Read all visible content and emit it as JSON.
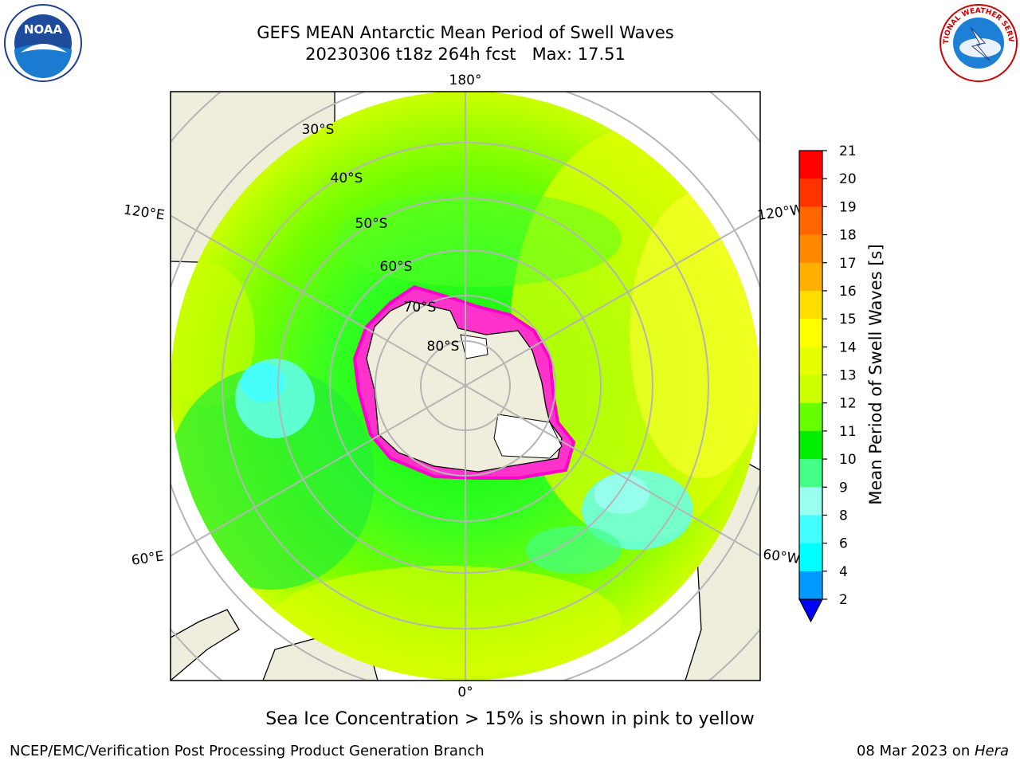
{
  "title": {
    "line1": "GEFS MEAN Antarctic Mean Period of Swell Waves",
    "line2": "20230306 t18z 264h fcst   Max: 17.51"
  },
  "logos": {
    "left_text": "NOAA",
    "right_text": "NATIONAL WEATHER SERVICE"
  },
  "map": {
    "lon_labels": [
      "180°",
      "120°E",
      "120°W",
      "60°E",
      "60°W",
      "0°"
    ],
    "lat_labels": [
      "30°S",
      "40°S",
      "50°S",
      "60°S",
      "70°S",
      "80°S"
    ]
  },
  "colorbar": {
    "label": "Mean Period of Swell Waves [s]",
    "ticks": [
      "21",
      "20",
      "19",
      "18",
      "17",
      "16",
      "15",
      "14",
      "13",
      "12",
      "11",
      "10",
      "9",
      "8",
      "6",
      "4",
      "2"
    ],
    "colors": [
      "#ff0000",
      "#ff3300",
      "#ff6600",
      "#ff8800",
      "#ffb000",
      "#ffdd00",
      "#ffff00",
      "#e6ff00",
      "#ccff00",
      "#66ff00",
      "#00ee00",
      "#44ff88",
      "#99ffee",
      "#44ffff",
      "#00ffff",
      "#0099ff",
      "#0000ff"
    ]
  },
  "caption": "Sea Ice Concentration > 15% is shown in pink to yellow",
  "footer": {
    "left": "NCEP/EMC/Verification Post Processing Product Generation Branch",
    "date": "08 Mar 2023 on ",
    "machine": "Hera"
  }
}
